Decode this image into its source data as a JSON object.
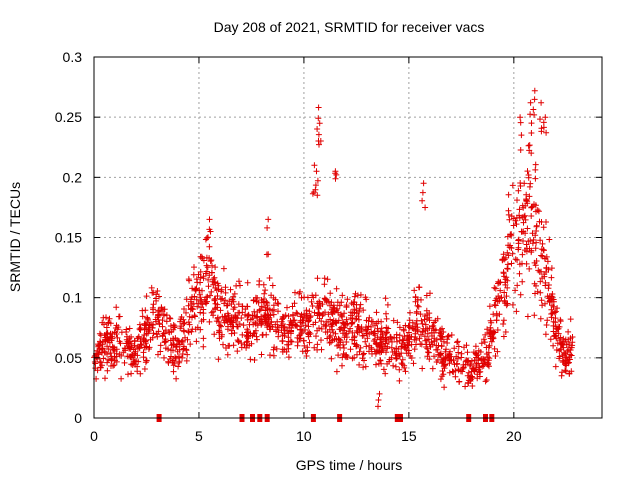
{
  "chart_data": {
    "type": "scatter",
    "title": "Day 208 of 2021, SRMTID for receiver vacs",
    "xlabel": "GPS time / hours",
    "ylabel": "SRMTID / TECUs",
    "xlim": [
      0,
      24.2
    ],
    "ylim": [
      0,
      0.3
    ],
    "xticks": [
      0,
      5,
      10,
      15,
      20
    ],
    "yticks": [
      0,
      0.05,
      0.1,
      0.15,
      0.2,
      0.25,
      0.3
    ],
    "xtick_labels": [
      "0",
      "5",
      "10",
      "15",
      "20"
    ],
    "ytick_labels": [
      "0",
      "0.05",
      "0.1",
      "0.15",
      "0.2",
      "0.25",
      "0.3"
    ],
    "grid": true,
    "marker": "+",
    "color": "#e00000",
    "series": [
      {
        "name": "SRMTID",
        "trend": [
          [
            0.0,
            0.05
          ],
          [
            0.5,
            0.06
          ],
          [
            1.0,
            0.062
          ],
          [
            1.5,
            0.058
          ],
          [
            2.0,
            0.055
          ],
          [
            2.5,
            0.07
          ],
          [
            3.0,
            0.085
          ],
          [
            3.5,
            0.065
          ],
          [
            4.0,
            0.06
          ],
          [
            4.5,
            0.08
          ],
          [
            5.0,
            0.1
          ],
          [
            5.5,
            0.11
          ],
          [
            6.0,
            0.09
          ],
          [
            6.5,
            0.08
          ],
          [
            7.0,
            0.08
          ],
          [
            7.5,
            0.075
          ],
          [
            8.0,
            0.085
          ],
          [
            8.5,
            0.08
          ],
          [
            9.0,
            0.07
          ],
          [
            9.5,
            0.075
          ],
          [
            10.0,
            0.075
          ],
          [
            10.5,
            0.085
          ],
          [
            11.0,
            0.09
          ],
          [
            11.5,
            0.075
          ],
          [
            12.0,
            0.07
          ],
          [
            12.5,
            0.08
          ],
          [
            13.0,
            0.07
          ],
          [
            13.5,
            0.065
          ],
          [
            14.0,
            0.07
          ],
          [
            14.5,
            0.055
          ],
          [
            15.0,
            0.065
          ],
          [
            15.5,
            0.085
          ],
          [
            16.0,
            0.07
          ],
          [
            16.5,
            0.055
          ],
          [
            17.0,
            0.05
          ],
          [
            17.5,
            0.045
          ],
          [
            18.0,
            0.04
          ],
          [
            18.5,
            0.05
          ],
          [
            19.0,
            0.07
          ],
          [
            19.5,
            0.11
          ],
          [
            20.0,
            0.15
          ],
          [
            20.5,
            0.17
          ],
          [
            21.0,
            0.16
          ],
          [
            21.5,
            0.12
          ],
          [
            22.0,
            0.07
          ],
          [
            22.5,
            0.05
          ],
          [
            22.8,
            0.06
          ]
        ],
        "peaks": [
          [
            10.7,
            0.258
          ],
          [
            10.75,
            0.245
          ],
          [
            10.6,
            0.205
          ],
          [
            11.5,
            0.205
          ],
          [
            15.7,
            0.195
          ],
          [
            21.0,
            0.272
          ],
          [
            20.8,
            0.262
          ],
          [
            21.3,
            0.262
          ],
          [
            20.3,
            0.25
          ],
          [
            21.5,
            0.25
          ],
          [
            8.3,
            0.165
          ],
          [
            5.5,
            0.165
          ],
          [
            10.5,
            0.21
          ],
          [
            13.6,
            0.02
          ]
        ],
        "gap_markers_x": [
          3.1,
          7.05,
          7.55,
          7.9,
          8.25,
          10.45,
          11.7,
          14.45,
          14.6,
          17.85,
          18.65,
          18.95
        ]
      }
    ]
  }
}
